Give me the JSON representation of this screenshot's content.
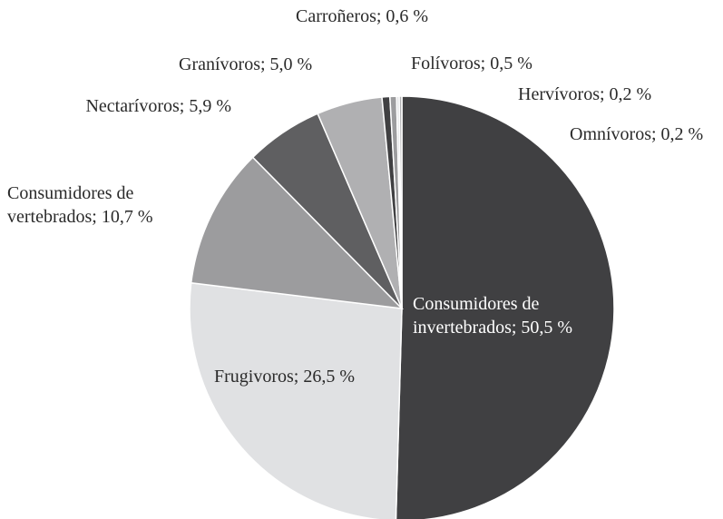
{
  "chart_data": {
    "type": "pie",
    "values": [
      50.5,
      26.5,
      10.7,
      5.9,
      5.0,
      0.6,
      0.5,
      0.2,
      0.2
    ],
    "value_labels": [
      "Consumidores de invertebrados; 50,5 %",
      "Frugivoros; 26,5 %",
      "Consumidores de vertebrados; 10,7 %",
      "Nectarívoros; 5,9 %",
      "Granívoros; 5,0 %",
      "Carroñeros; 0,6 %",
      "Folívoros; 0,5 %",
      "Hervívoros; 0,2 %",
      "Omnívoros; 0,2 %"
    ],
    "colors": [
      "#404042",
      "#e0e1e3",
      "#9c9c9e",
      "#5f5f61",
      "#b0b0b2",
      "#404042",
      "#9c9c9e",
      "#e0e1e3",
      "#b0b0b2"
    ]
  }
}
